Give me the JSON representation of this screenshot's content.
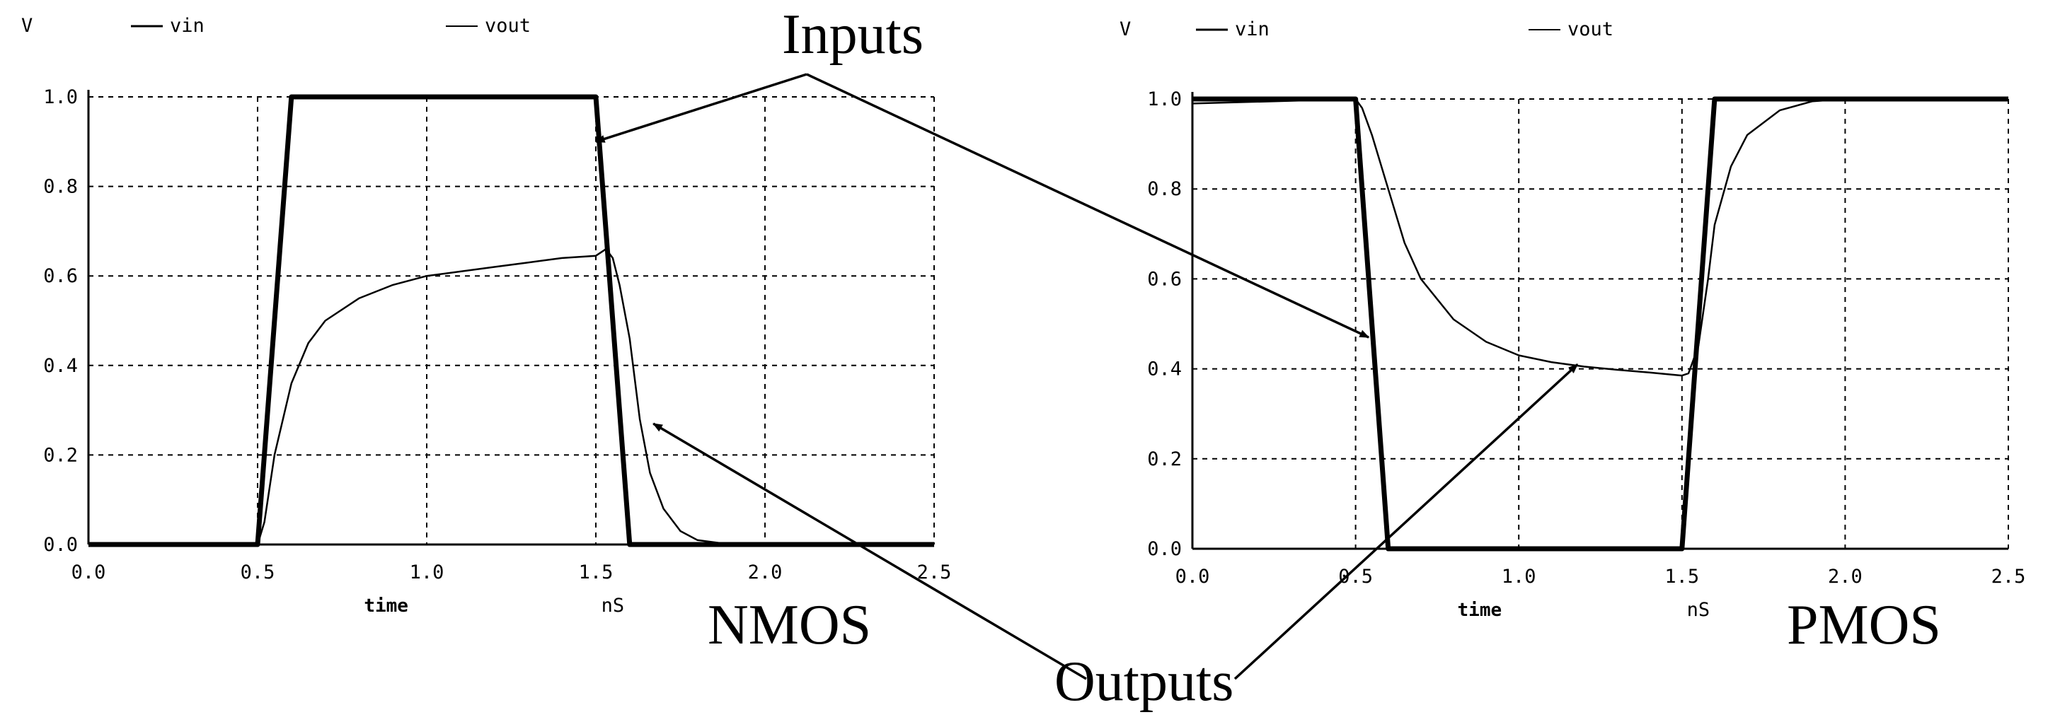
{
  "chart_data": [
    {
      "type": "line",
      "y_unit": "V",
      "xlabel": "time",
      "x_unit": "nS",
      "xlim": [
        0,
        2.5
      ],
      "ylim": [
        0,
        1.0
      ],
      "x_ticks": [
        "0.0",
        "0.5",
        "1.0",
        "1.5",
        "2.0",
        "2.5"
      ],
      "y_ticks": [
        "0.0",
        "0.2",
        "0.4",
        "0.6",
        "0.8",
        "1.0"
      ],
      "grid": true,
      "legend_position": "top",
      "label": "NMOS",
      "series": [
        {
          "name": "vin",
          "style": "thick",
          "x": [
            0.0,
            0.5,
            0.6,
            1.5,
            1.6,
            2.5
          ],
          "y": [
            0.0,
            0.0,
            1.0,
            1.0,
            0.0,
            0.0
          ]
        },
        {
          "name": "vout",
          "style": "thin",
          "x": [
            0.0,
            0.5,
            0.52,
            0.55,
            0.6,
            0.65,
            0.7,
            0.8,
            0.9,
            1.0,
            1.1,
            1.2,
            1.3,
            1.4,
            1.5,
            1.53,
            1.55,
            1.57,
            1.6,
            1.63,
            1.66,
            1.7,
            1.75,
            1.8,
            1.9,
            2.0,
            2.5
          ],
          "y": [
            0.0,
            0.0,
            0.05,
            0.2,
            0.36,
            0.45,
            0.5,
            0.55,
            0.58,
            0.6,
            0.61,
            0.62,
            0.63,
            0.64,
            0.645,
            0.66,
            0.64,
            0.58,
            0.46,
            0.28,
            0.16,
            0.08,
            0.03,
            0.01,
            0.0,
            0.0,
            0.0
          ]
        }
      ]
    },
    {
      "type": "line",
      "y_unit": "V",
      "xlabel": "time",
      "x_unit": "nS",
      "xlim": [
        0,
        2.5
      ],
      "ylim": [
        0,
        1.0
      ],
      "x_ticks": [
        "0.0",
        "0.5",
        "1.0",
        "1.5",
        "2.0",
        "2.5"
      ],
      "y_ticks": [
        "0.0",
        "0.2",
        "0.4",
        "0.6",
        "0.8",
        "1.0"
      ],
      "grid": true,
      "legend_position": "top",
      "label": "PMOS",
      "series": [
        {
          "name": "vin",
          "style": "thick",
          "x": [
            0.0,
            0.5,
            0.6,
            1.5,
            1.6,
            2.5
          ],
          "y": [
            1.0,
            1.0,
            0.0,
            0.0,
            1.0,
            1.0
          ]
        },
        {
          "name": "vout",
          "style": "thin",
          "x": [
            0.0,
            0.5,
            0.52,
            0.55,
            0.6,
            0.65,
            0.7,
            0.8,
            0.9,
            1.0,
            1.1,
            1.2,
            1.3,
            1.4,
            1.5,
            1.52,
            1.55,
            1.58,
            1.6,
            1.65,
            1.7,
            1.8,
            1.9,
            2.0,
            2.5
          ],
          "y": [
            0.99,
            1.0,
            0.98,
            0.92,
            0.8,
            0.68,
            0.6,
            0.51,
            0.46,
            0.43,
            0.415,
            0.405,
            0.398,
            0.392,
            0.385,
            0.39,
            0.45,
            0.6,
            0.72,
            0.85,
            0.92,
            0.975,
            0.995,
            1.0,
            1.0
          ]
        }
      ]
    }
  ],
  "annotations": {
    "inputs": "Inputs",
    "outputs": "Outputs"
  }
}
